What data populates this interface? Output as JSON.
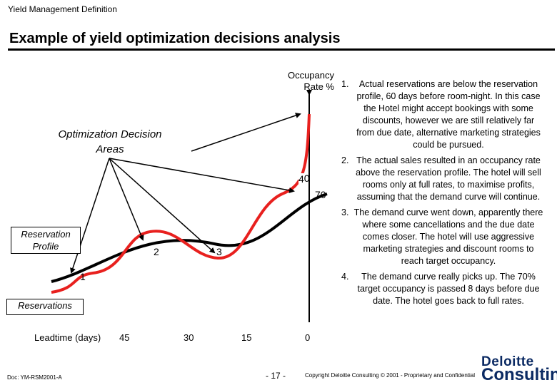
{
  "header": "Yield Management Definition",
  "title": "Example of yield optimization decisions analysis",
  "diagram": {
    "y_axis_label_line1": "Occupancy",
    "y_axis_label_line2": "Rate %",
    "optimization_label_line1": "Optimization Decision",
    "optimization_label_line2": "Areas",
    "reservation_profile_line1": "Reservation",
    "reservation_profile_line2": "Profile",
    "reservations_label": "Reservations",
    "target_value": "70",
    "area_labels": [
      "1",
      "2",
      "3",
      "4"
    ],
    "x_axis_title": "Leadtime (days)",
    "x_ticks": [
      "45",
      "30",
      "15",
      "0"
    ],
    "colors": {
      "reservation_curve": "#000000",
      "demand_curve": "#e8201e"
    }
  },
  "notes": [
    {
      "num": "1.",
      "text": "Actual reservations are below the reservation profile, 60 days before room-night. In this case the Hotel might accept bookings with some discounts, however we are still relatively far from due date, alternative marketing strategies could be pursued."
    },
    {
      "num": "2.",
      "text": "The actual sales resulted in an occupancy rate above the reservation profile. The hotel will sell rooms only at full rates, to maximise profits, assuming that the demand curve will continue."
    },
    {
      "num": "3.",
      "text": "The demand curve went down, apparently there where some cancellations and the due date comes closer. The hotel will use aggressive marketing strategies and discount rooms to reach target occupancy."
    },
    {
      "num": "4.",
      "text": "The demand curve really picks up. The 70% target occupancy is passed 8 days before due date. The hotel goes back to full rates."
    }
  ],
  "footer": {
    "doc_id": "Doc: YM-RSM2001-A",
    "page": "- 17 -",
    "copyright": "Copyright Deloitte Consulting © 2001 - Proprietary and Confidential",
    "logo_line1": "Deloitte",
    "logo_line2": "Consulting"
  }
}
